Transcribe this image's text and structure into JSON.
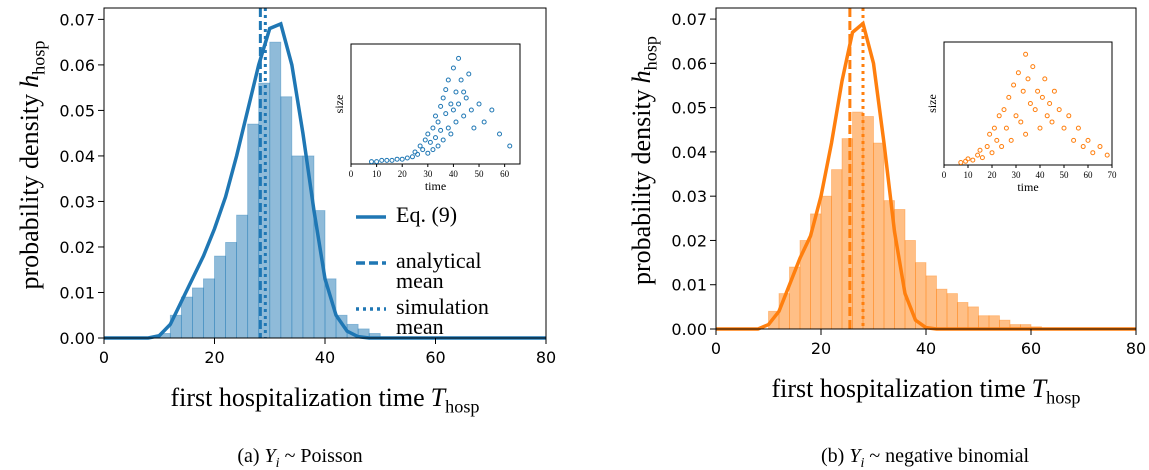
{
  "chart_data": [
    {
      "type": "histogram",
      "color": "#1f77b4",
      "caption": {
        "prefix": "(a)",
        "symbol": "Y",
        "subscript": "i",
        "text": "~ Poisson"
      },
      "xlabel": {
        "text": "first hospitalization time",
        "symbol": "T",
        "subscript": "hosp"
      },
      "ylabel": {
        "text": "probability density",
        "symbol": "h",
        "subscript": "hosp"
      },
      "xlim": [
        0,
        80
      ],
      "xticks": [
        0,
        20,
        40,
        60,
        80
      ],
      "ylim": [
        0,
        0.0725
      ],
      "yticks": [
        {
          "value": 0,
          "label": "0.00"
        },
        0.01,
        0.02,
        0.03,
        0.04,
        0.05,
        0.06,
        0.07
      ],
      "bins": [
        10,
        12,
        14,
        16,
        18,
        20,
        22,
        24,
        26,
        28,
        30,
        32,
        34,
        36,
        38,
        40,
        42,
        44,
        46,
        48,
        50
      ],
      "values": [
        0.001,
        0.005,
        0.009,
        0.011,
        0.013,
        0.018,
        0.021,
        0.027,
        0.047,
        0.056,
        0.065,
        0.053,
        0.04,
        0.04,
        0.028,
        0.013,
        0.005,
        0.003,
        0.002,
        0.001
      ],
      "curve": {
        "name": "Eq. (9)",
        "x": [
          0,
          2,
          4,
          6,
          8,
          10,
          12,
          14,
          16,
          18,
          20,
          22,
          24,
          26,
          28,
          30,
          32,
          34,
          36,
          38,
          40,
          42,
          44,
          46,
          48,
          50,
          60,
          70,
          80
        ],
        "values": [
          0,
          0,
          0,
          0,
          0,
          0.0005,
          0.003,
          0.008,
          0.013,
          0.018,
          0.024,
          0.031,
          0.04,
          0.05,
          0.06,
          0.068,
          0.069,
          0.06,
          0.045,
          0.028,
          0.013,
          0.005,
          0.0015,
          0.0003,
          0,
          0,
          0,
          0,
          0
        ]
      },
      "vlines": [
        {
          "name": "analytical mean",
          "value": 28.3,
          "style": "dashed"
        },
        {
          "name": "simulation mean",
          "value": 29.2,
          "style": "dotted"
        }
      ],
      "legend": true,
      "inset": {
        "xlabel": "time",
        "ylabel": "size",
        "xlim": [
          0,
          66
        ],
        "xticks": [
          0,
          10,
          20,
          30,
          40,
          50,
          60
        ],
        "ylim": [
          0,
          100
        ],
        "x": [
          8,
          10,
          12,
          14,
          16,
          18,
          20,
          22,
          24,
          25,
          26,
          27,
          28,
          29,
          30,
          30,
          31,
          32,
          32,
          33,
          33,
          34,
          34,
          35,
          35,
          36,
          36,
          37,
          37,
          38,
          38,
          39,
          39,
          40,
          40,
          41,
          41,
          42,
          42,
          43,
          44,
          44,
          45,
          46,
          47,
          48,
          50,
          52,
          55,
          58,
          62
        ],
        "y": [
          2,
          2,
          3,
          3,
          3,
          4,
          4,
          5,
          6,
          10,
          8,
          15,
          12,
          20,
          25,
          9,
          18,
          30,
          12,
          40,
          22,
          35,
          15,
          48,
          28,
          55,
          20,
          42,
          62,
          30,
          70,
          50,
          25,
          80,
          45,
          60,
          35,
          88,
          50,
          70,
          40,
          60,
          55,
          75,
          45,
          30,
          50,
          35,
          45,
          25,
          15
        ]
      }
    },
    {
      "type": "histogram",
      "color": "#ff7f0e",
      "caption": {
        "prefix": "(b)",
        "symbol": "Y",
        "subscript": "i",
        "text": "~ negative binomial"
      },
      "xlabel": {
        "text": "first hospitalization time",
        "symbol": "T",
        "subscript": "hosp"
      },
      "ylabel": {
        "text": "probability density",
        "symbol": "h",
        "subscript": "hosp"
      },
      "xlim": [
        0,
        80
      ],
      "xticks": [
        0,
        20,
        40,
        60,
        80
      ],
      "ylim": [
        0,
        0.0725
      ],
      "yticks": [
        {
          "value": 0,
          "label": "0.00"
        },
        0.01,
        0.02,
        0.03,
        0.04,
        0.05,
        0.06,
        0.07
      ],
      "bins": [
        10,
        12,
        14,
        16,
        18,
        20,
        22,
        24,
        26,
        28,
        30,
        32,
        34,
        36,
        38,
        40,
        42,
        44,
        46,
        48,
        50,
        52,
        54,
        56,
        58,
        60,
        62
      ],
      "values": [
        0.004,
        0.008,
        0.014,
        0.02,
        0.026,
        0.03,
        0.036,
        0.043,
        0.049,
        0.048,
        0.042,
        0.029,
        0.027,
        0.02,
        0.015,
        0.012,
        0.009,
        0.008,
        0.006,
        0.005,
        0.003,
        0.003,
        0.002,
        0.001,
        0.001,
        0.0005
      ],
      "curve": {
        "name": "Eq. (9)",
        "x": [
          0,
          2,
          4,
          6,
          8,
          10,
          12,
          14,
          16,
          18,
          20,
          22,
          24,
          26,
          28,
          30,
          32,
          34,
          36,
          38,
          40,
          42,
          50,
          60,
          70,
          80
        ],
        "values": [
          0,
          0,
          0,
          0,
          0,
          0.001,
          0.004,
          0.01,
          0.016,
          0.021,
          0.03,
          0.042,
          0.056,
          0.067,
          0.069,
          0.06,
          0.042,
          0.022,
          0.008,
          0.002,
          0.0003,
          0,
          0,
          0,
          0,
          0
        ]
      },
      "vlines": [
        {
          "name": "analytical mean",
          "value": 25.5,
          "style": "dashed"
        },
        {
          "name": "simulation mean",
          "value": 28,
          "style": "dotted"
        }
      ],
      "legend": false,
      "inset": {
        "xlabel": "time",
        "ylabel": "size",
        "xlim": [
          0,
          70
        ],
        "xticks": [
          0,
          10,
          20,
          30,
          40,
          50,
          60,
          70
        ],
        "ylim": [
          0,
          100
        ],
        "x": [
          7,
          9,
          10,
          12,
          14,
          15,
          16,
          18,
          19,
          20,
          21,
          22,
          23,
          24,
          25,
          26,
          27,
          28,
          29,
          30,
          31,
          32,
          33,
          34,
          34,
          35,
          36,
          37,
          38,
          39,
          40,
          41,
          42,
          43,
          44,
          45,
          46,
          48,
          50,
          52,
          54,
          56,
          58,
          60,
          62,
          65,
          68
        ],
        "y": [
          2,
          3,
          5,
          4,
          8,
          12,
          6,
          15,
          25,
          10,
          30,
          20,
          40,
          15,
          45,
          30,
          55,
          20,
          65,
          40,
          75,
          35,
          60,
          90,
          25,
          70,
          50,
          80,
          45,
          60,
          30,
          55,
          70,
          40,
          50,
          35,
          60,
          45,
          30,
          40,
          20,
          30,
          15,
          20,
          10,
          15,
          8
        ]
      }
    }
  ]
}
